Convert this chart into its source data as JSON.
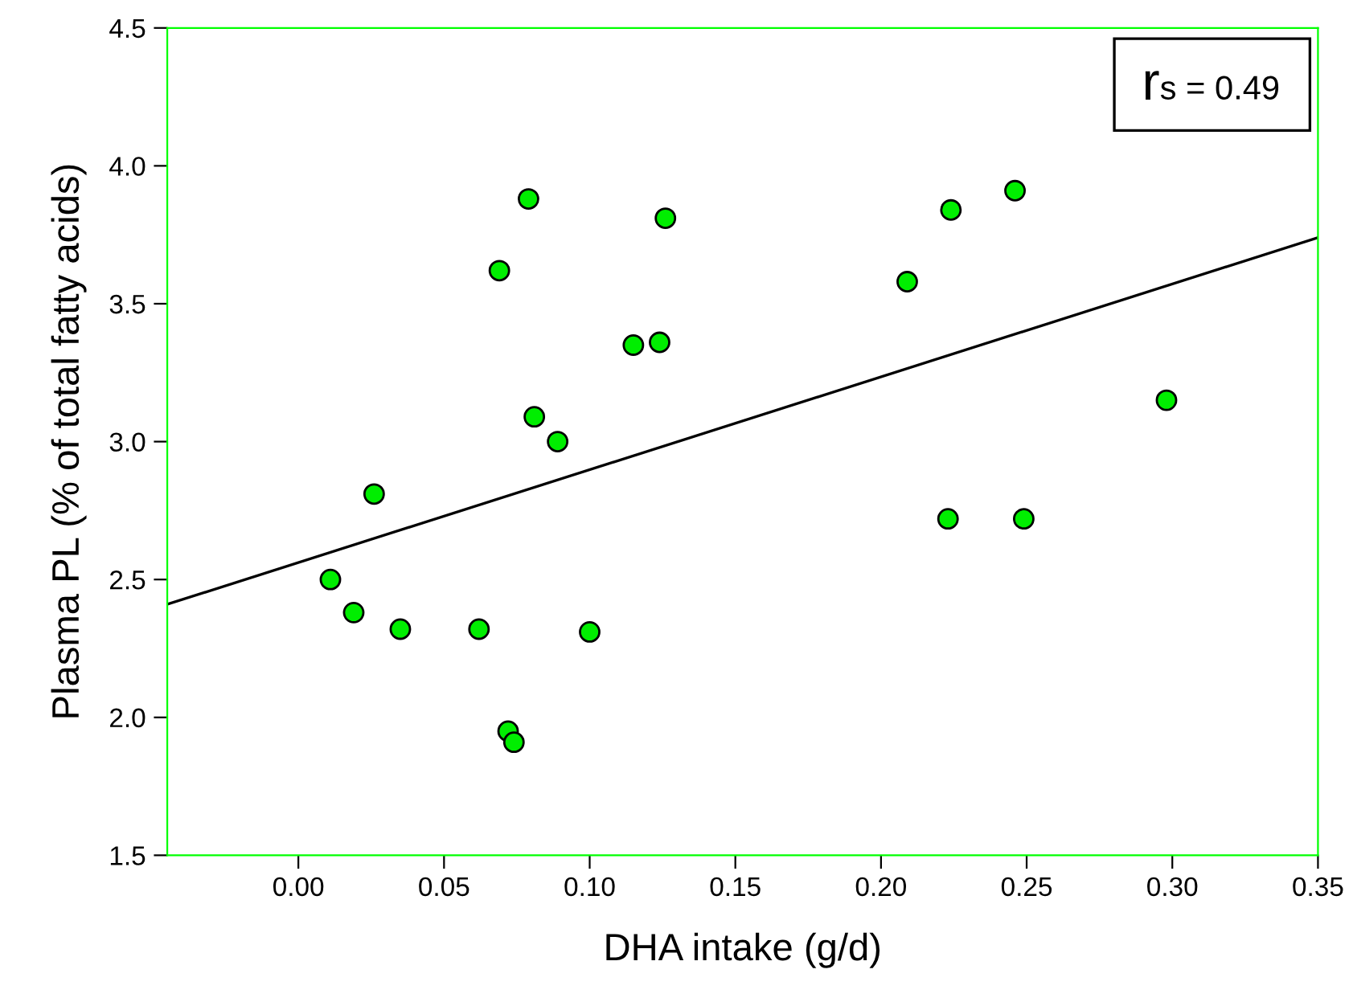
{
  "chart_data": {
    "type": "scatter",
    "xlabel": "DHA intake (g/d)",
    "ylabel": "Plasma PL (% of total fatty acids)",
    "annotations": [
      "r$_{s = 0.49}$"
    ],
    "xlim": [
      -0.045,
      0.35
    ],
    "xticks": [
      {
        "value": 0.0,
        "label": "0.00"
      },
      0.05,
      {
        "value": 0.1,
        "label": "0.10"
      },
      0.15,
      {
        "value": 0.2,
        "label": "0.20"
      },
      0.25,
      {
        "value": 0.3,
        "label": "0.30"
      },
      0.35
    ],
    "ylim": [
      1.5,
      4.5
    ],
    "yticks": [
      1.5,
      {
        "value": 2.0,
        "label": "2.0"
      },
      2.5,
      {
        "value": 3.0,
        "label": "3.0"
      },
      3.5,
      {
        "value": 4.0,
        "label": "4.0"
      },
      4.5
    ],
    "grid": false,
    "legend": false,
    "marker": "circle",
    "series": [
      {
        "color": "#00ee00",
        "x": [
          0.011,
          0.019,
          0.026,
          0.035,
          0.062,
          0.069,
          0.072,
          0.074,
          0.079,
          0.081,
          0.089,
          0.1,
          0.115,
          0.124,
          0.126,
          0.209,
          0.224,
          0.246,
          0.223,
          0.249,
          0.298
        ],
        "values": [
          2.5,
          2.38,
          2.81,
          2.32,
          2.32,
          3.62,
          1.95,
          1.91,
          3.88,
          3.09,
          3.0,
          2.31,
          3.35,
          3.36,
          3.81,
          3.58,
          3.84,
          3.91,
          2.72,
          2.72,
          3.15
        ]
      },
      {
        "type": "line",
        "color": "#000000",
        "x": [
          -0.045,
          0.35
        ],
        "values": [
          2.41,
          3.74
        ],
        "marker": "none",
        "line_style": "solid"
      }
    ]
  }
}
